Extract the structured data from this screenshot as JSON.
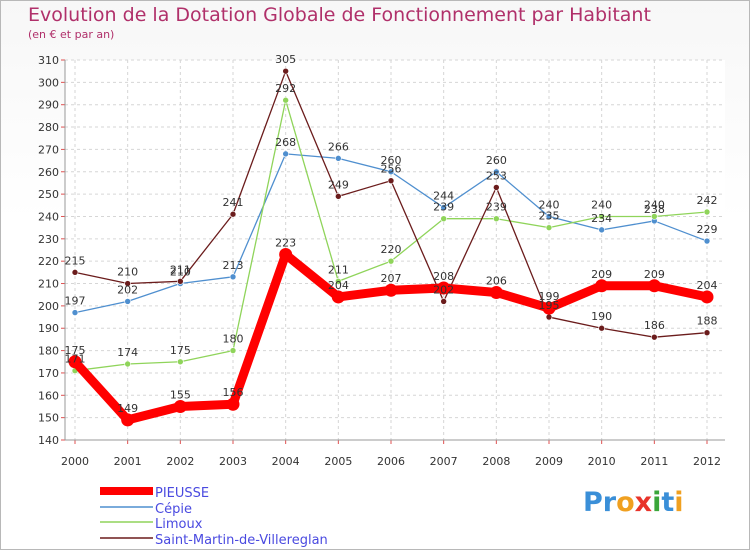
{
  "chart_data": {
    "type": "line",
    "title": "Evolution de la Dotation Globale de Fonctionnement par Habitant",
    "subtitle": "(en € et par an)",
    "x": [
      "2000",
      "2001",
      "2002",
      "2003",
      "2004",
      "2005",
      "2006",
      "2007",
      "2008",
      "2009",
      "2010",
      "2011",
      "2012"
    ],
    "ylim": [
      140,
      310
    ],
    "yticks": [
      140,
      150,
      160,
      170,
      180,
      190,
      200,
      210,
      220,
      230,
      240,
      250,
      260,
      270,
      280,
      290,
      300,
      310
    ],
    "series": [
      {
        "name": "PIEUSSE",
        "color": "#ff0000",
        "values": [
          175,
          149,
          155,
          156,
          223,
          204,
          207,
          208,
          206,
          199,
          209,
          209,
          204
        ]
      },
      {
        "name": "Cépie",
        "color": "#4f8fcf",
        "values": [
          197,
          202,
          210,
          213,
          268,
          266,
          260,
          244,
          260,
          240,
          234,
          238,
          229
        ]
      },
      {
        "name": "Limoux",
        "color": "#8fd45a",
        "values": [
          171,
          174,
          175,
          180,
          292,
          211,
          220,
          239,
          239,
          235,
          240,
          240,
          242
        ]
      },
      {
        "name": "Saint-Martin-de-Villereglan",
        "color": "#6b1c1c",
        "values": [
          215,
          210,
          211,
          241,
          305,
          249,
          256,
          202,
          253,
          195,
          190,
          186,
          188
        ]
      }
    ],
    "grid": true,
    "legend": "bottom-left"
  },
  "watermark": {
    "text": "Proxiti"
  }
}
